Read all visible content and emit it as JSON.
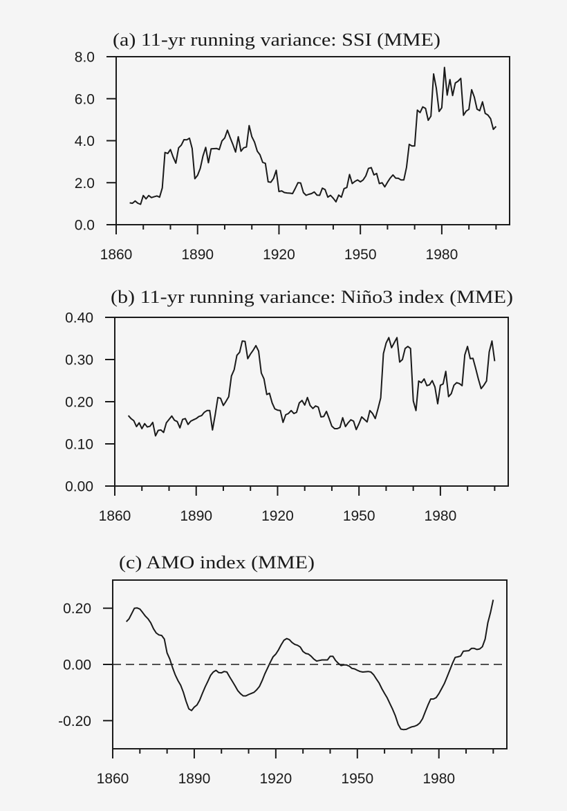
{
  "chart_data": [
    {
      "type": "line",
      "title": "(a) 11-yr running variance: SSI (MME)",
      "xlabel": "",
      "ylabel": "",
      "xlim": [
        1860,
        2005
      ],
      "ylim": [
        0,
        8
      ],
      "xticks": [
        1860,
        1890,
        1920,
        1950,
        1980
      ],
      "xticklabels": [
        "1860",
        "1890",
        "1920",
        "1950",
        "1980"
      ],
      "yticks": [
        0,
        2,
        4,
        6,
        8
      ],
      "yticklabels": [
        "0.0",
        "2.0",
        "4.0",
        "6.0",
        "8.0"
      ],
      "grid": false,
      "line_color": "#1a1a1a",
      "x": [
        1865,
        1866,
        1867,
        1868,
        1869,
        1870,
        1871,
        1872,
        1873,
        1874,
        1875,
        1876,
        1877,
        1878,
        1879,
        1880,
        1881,
        1882,
        1883,
        1884,
        1885,
        1886,
        1887,
        1888,
        1889,
        1890,
        1891,
        1892,
        1893,
        1894,
        1895,
        1896,
        1897,
        1898,
        1899,
        1900,
        1901,
        1902,
        1903,
        1904,
        1905,
        1906,
        1907,
        1908,
        1909,
        1910,
        1911,
        1912,
        1913,
        1914,
        1915,
        1916,
        1917,
        1918,
        1919,
        1920,
        1921,
        1922,
        1923,
        1924,
        1925,
        1926,
        1927,
        1928,
        1929,
        1930,
        1931,
        1932,
        1933,
        1934,
        1935,
        1936,
        1937,
        1938,
        1939,
        1940,
        1941,
        1942,
        1943,
        1944,
        1945,
        1946,
        1947,
        1948,
        1949,
        1950,
        1951,
        1952,
        1953,
        1954,
        1955,
        1956,
        1957,
        1958,
        1959,
        1960,
        1961,
        1962,
        1963,
        1964,
        1965,
        1966,
        1967,
        1968,
        1969,
        1970,
        1971,
        1972,
        1973,
        1974,
        1975,
        1976,
        1977,
        1978,
        1979,
        1980,
        1981,
        1982,
        1983,
        1984,
        1985,
        1986,
        1987,
        1988,
        1989,
        1990,
        1991,
        1992,
        1993,
        1994,
        1995,
        1996,
        1997,
        1998,
        1999,
        2000
      ],
      "values": [
        1.04,
        1.02,
        1.13,
        1.02,
        0.97,
        1.39,
        1.23,
        1.39,
        1.29,
        1.33,
        1.37,
        1.31,
        1.75,
        3.44,
        3.39,
        3.58,
        3.22,
        2.93,
        3.66,
        3.79,
        4.05,
        4.04,
        4.12,
        3.63,
        2.19,
        2.35,
        2.68,
        3.28,
        3.68,
        2.95,
        3.61,
        3.62,
        3.63,
        3.58,
        3.99,
        4.13,
        4.5,
        4.15,
        3.83,
        3.46,
        4.19,
        3.5,
        3.66,
        3.7,
        4.72,
        4.19,
        3.93,
        3.5,
        3.33,
        2.97,
        2.92,
        2.04,
        2.02,
        2.21,
        2.59,
        1.58,
        1.61,
        1.53,
        1.51,
        1.5,
        1.48,
        1.73,
        2.0,
        1.99,
        1.53,
        1.4,
        1.45,
        1.48,
        1.56,
        1.41,
        1.4,
        1.74,
        1.67,
        1.31,
        1.4,
        1.26,
        1.09,
        1.41,
        1.31,
        1.72,
        1.77,
        2.39,
        1.96,
        2.06,
        2.13,
        2.04,
        2.13,
        2.32,
        2.68,
        2.72,
        2.37,
        2.44,
        1.96,
        2.0,
        1.8,
        2.02,
        2.22,
        2.37,
        2.22,
        2.21,
        2.13,
        2.13,
        2.73,
        3.83,
        3.75,
        3.75,
        5.46,
        5.34,
        5.61,
        5.54,
        4.97,
        5.17,
        7.18,
        6.5,
        5.39,
        5.57,
        7.49,
        6.17,
        6.91,
        6.15,
        6.75,
        6.83,
        6.97,
        5.21,
        5.41,
        5.49,
        6.43,
        6.07,
        5.5,
        5.43,
        5.85,
        5.3,
        5.22,
        5.05,
        4.54,
        4.68
      ]
    },
    {
      "type": "line",
      "title": "(b) 11-yr running variance: Niño3 index (MME)",
      "xlabel": "",
      "ylabel": "",
      "xlim": [
        1860,
        2005
      ],
      "ylim": [
        0,
        0.4
      ],
      "xticks": [
        1860,
        1890,
        1920,
        1950,
        1980
      ],
      "xticklabels": [
        "1860",
        "1890",
        "1920",
        "1950",
        "1980"
      ],
      "yticks": [
        0,
        0.1,
        0.2,
        0.3,
        0.4
      ],
      "yticklabels": [
        "0.00",
        "0.10",
        "0.20",
        "0.30",
        "0.40"
      ],
      "grid": false,
      "line_color": "#1a1a1a",
      "x": [
        1865,
        1866,
        1867,
        1868,
        1869,
        1870,
        1871,
        1872,
        1873,
        1874,
        1875,
        1876,
        1877,
        1878,
        1879,
        1880,
        1881,
        1882,
        1883,
        1884,
        1885,
        1886,
        1887,
        1888,
        1889,
        1890,
        1891,
        1892,
        1893,
        1894,
        1895,
        1896,
        1897,
        1898,
        1899,
        1900,
        1901,
        1902,
        1903,
        1904,
        1905,
        1906,
        1907,
        1908,
        1909,
        1910,
        1911,
        1912,
        1913,
        1914,
        1915,
        1916,
        1917,
        1918,
        1919,
        1920,
        1921,
        1922,
        1923,
        1924,
        1925,
        1926,
        1927,
        1928,
        1929,
        1930,
        1931,
        1932,
        1933,
        1934,
        1935,
        1936,
        1937,
        1938,
        1939,
        1940,
        1941,
        1942,
        1943,
        1944,
        1945,
        1946,
        1947,
        1948,
        1949,
        1950,
        1951,
        1952,
        1953,
        1954,
        1955,
        1956,
        1957,
        1958,
        1959,
        1960,
        1961,
        1962,
        1963,
        1964,
        1965,
        1966,
        1967,
        1968,
        1969,
        1970,
        1971,
        1972,
        1973,
        1974,
        1975,
        1976,
        1977,
        1978,
        1979,
        1980,
        1981,
        1982,
        1983,
        1984,
        1985,
        1986,
        1987,
        1988,
        1989,
        1990,
        1991,
        1992,
        1993,
        1994,
        1995,
        1996,
        1997,
        1998,
        1999,
        2000
      ],
      "values": [
        0.167,
        0.16,
        0.155,
        0.141,
        0.15,
        0.136,
        0.148,
        0.14,
        0.142,
        0.151,
        0.119,
        0.132,
        0.133,
        0.127,
        0.15,
        0.158,
        0.166,
        0.156,
        0.153,
        0.138,
        0.158,
        0.16,
        0.146,
        0.154,
        0.157,
        0.16,
        0.165,
        0.167,
        0.175,
        0.179,
        0.179,
        0.133,
        0.169,
        0.21,
        0.208,
        0.191,
        0.201,
        0.212,
        0.261,
        0.276,
        0.31,
        0.317,
        0.344,
        0.343,
        0.302,
        0.313,
        0.322,
        0.333,
        0.32,
        0.268,
        0.254,
        0.217,
        0.22,
        0.197,
        0.183,
        0.18,
        0.179,
        0.151,
        0.169,
        0.172,
        0.179,
        0.172,
        0.175,
        0.197,
        0.203,
        0.192,
        0.21,
        0.191,
        0.184,
        0.19,
        0.187,
        0.164,
        0.165,
        0.177,
        0.16,
        0.142,
        0.136,
        0.136,
        0.139,
        0.162,
        0.141,
        0.15,
        0.157,
        0.154,
        0.134,
        0.148,
        0.164,
        0.158,
        0.152,
        0.179,
        0.172,
        0.16,
        0.183,
        0.209,
        0.314,
        0.339,
        0.352,
        0.328,
        0.34,
        0.352,
        0.294,
        0.3,
        0.326,
        0.331,
        0.326,
        0.202,
        0.179,
        0.249,
        0.245,
        0.254,
        0.238,
        0.24,
        0.25,
        0.235,
        0.195,
        0.239,
        0.242,
        0.272,
        0.212,
        0.219,
        0.239,
        0.245,
        0.243,
        0.238,
        0.311,
        0.331,
        0.302,
        0.303,
        0.279,
        0.254,
        0.231,
        0.239,
        0.249,
        0.318,
        0.344,
        0.296
      ]
    },
    {
      "type": "line",
      "title": "(c) AMO index (MME)",
      "xlabel": "",
      "ylabel": "",
      "xlim": [
        1860,
        2005
      ],
      "ylim": [
        -0.3,
        0.3
      ],
      "xticks": [
        1860,
        1890,
        1920,
        1950,
        1980
      ],
      "xticklabels": [
        "1860",
        "1890",
        "1920",
        "1950",
        "1980"
      ],
      "yticks": [
        -0.2,
        0,
        0.2
      ],
      "yticklabels": [
        "-0.20",
        "0.00",
        "0.20"
      ],
      "grid": false,
      "reference_line": {
        "y": 0,
        "style": "dashed"
      },
      "line_color": "#1a1a1a",
      "x": [
        1865,
        1866,
        1867,
        1868,
        1869,
        1870,
        1871,
        1872,
        1873,
        1874,
        1875,
        1876,
        1877,
        1878,
        1879,
        1880,
        1881,
        1882,
        1883,
        1884,
        1885,
        1886,
        1887,
        1888,
        1889,
        1890,
        1891,
        1892,
        1893,
        1894,
        1895,
        1896,
        1897,
        1898,
        1899,
        1900,
        1901,
        1902,
        1903,
        1904,
        1905,
        1906,
        1907,
        1908,
        1909,
        1910,
        1911,
        1912,
        1913,
        1914,
        1915,
        1916,
        1917,
        1918,
        1919,
        1920,
        1921,
        1922,
        1923,
        1924,
        1925,
        1926,
        1927,
        1928,
        1929,
        1930,
        1931,
        1932,
        1933,
        1934,
        1935,
        1936,
        1937,
        1938,
        1939,
        1940,
        1941,
        1942,
        1943,
        1944,
        1945,
        1946,
        1947,
        1948,
        1949,
        1950,
        1951,
        1952,
        1953,
        1954,
        1955,
        1956,
        1957,
        1958,
        1959,
        1960,
        1961,
        1962,
        1963,
        1964,
        1965,
        1966,
        1967,
        1968,
        1969,
        1970,
        1971,
        1972,
        1973,
        1974,
        1975,
        1976,
        1977,
        1978,
        1979,
        1980,
        1981,
        1982,
        1983,
        1984,
        1985,
        1986,
        1987,
        1988,
        1989,
        1990,
        1991,
        1992,
        1993,
        1994,
        1995,
        1996,
        1997,
        1998,
        1999,
        2000
      ],
      "values": [
        0.152,
        0.162,
        0.181,
        0.2,
        0.201,
        0.197,
        0.185,
        0.172,
        0.162,
        0.148,
        0.127,
        0.112,
        0.105,
        0.103,
        0.09,
        0.041,
        0.019,
        -0.011,
        -0.037,
        -0.057,
        -0.074,
        -0.099,
        -0.131,
        -0.158,
        -0.164,
        -0.152,
        -0.144,
        -0.127,
        -0.103,
        -0.08,
        -0.06,
        -0.039,
        -0.027,
        -0.021,
        -0.029,
        -0.03,
        -0.025,
        -0.027,
        -0.044,
        -0.06,
        -0.076,
        -0.093,
        -0.104,
        -0.112,
        -0.112,
        -0.107,
        -0.103,
        -0.099,
        -0.09,
        -0.078,
        -0.057,
        -0.033,
        -0.012,
        0.008,
        0.027,
        0.037,
        0.052,
        0.07,
        0.086,
        0.092,
        0.088,
        0.078,
        0.071,
        0.068,
        0.062,
        0.046,
        0.039,
        0.037,
        0.029,
        0.019,
        0.012,
        0.014,
        0.016,
        0.016,
        0.016,
        0.029,
        0.029,
        0.014,
        0.004,
        -0.004,
        -0.002,
        -0.002,
        -0.006,
        -0.014,
        -0.016,
        -0.021,
        -0.025,
        -0.027,
        -0.026,
        -0.025,
        -0.027,
        -0.037,
        -0.052,
        -0.066,
        -0.086,
        -0.103,
        -0.119,
        -0.14,
        -0.16,
        -0.183,
        -0.213,
        -0.23,
        -0.232,
        -0.231,
        -0.226,
        -0.222,
        -0.22,
        -0.216,
        -0.208,
        -0.193,
        -0.168,
        -0.144,
        -0.123,
        -0.123,
        -0.118,
        -0.104,
        -0.086,
        -0.068,
        -0.045,
        -0.021,
        0.004,
        0.025,
        0.027,
        0.03,
        0.047,
        0.048,
        0.049,
        0.057,
        0.057,
        0.053,
        0.055,
        0.063,
        0.09,
        0.148,
        0.185,
        0.23
      ]
    }
  ]
}
